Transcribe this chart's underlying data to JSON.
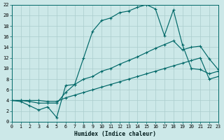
{
  "xlabel": "Humidex (Indice chaleur)",
  "background_color": "#cce8e8",
  "grid_color": "#aacccc",
  "line_color": "#006868",
  "xlim": [
    0,
    23
  ],
  "ylim": [
    0,
    22
  ],
  "xtick_vals": [
    0,
    1,
    2,
    3,
    4,
    5,
    6,
    7,
    8,
    9,
    10,
    11,
    12,
    13,
    14,
    15,
    16,
    17,
    18,
    19,
    20,
    21,
    22,
    23
  ],
  "ytick_vals": [
    0,
    2,
    4,
    6,
    8,
    10,
    12,
    14,
    16,
    18,
    20,
    22
  ],
  "line1_x": [
    0,
    1,
    2,
    3,
    4,
    5,
    6,
    7,
    8,
    9,
    10,
    11,
    12,
    13,
    14,
    15,
    16,
    17,
    18,
    19,
    20,
    21,
    22,
    23
  ],
  "line1_y": [
    4.0,
    3.8,
    3.0,
    2.2,
    2.8,
    0.8,
    6.8,
    7.0,
    12.0,
    17.0,
    19.0,
    19.5,
    20.5,
    20.8,
    21.5,
    22.0,
    21.2,
    16.2,
    21.0,
    14.5,
    10.0,
    9.8,
    9.0,
    9.5
  ],
  "line2_x": [
    0,
    1,
    2,
    3,
    4,
    5,
    6,
    7,
    8,
    9,
    10,
    11,
    12,
    13,
    14,
    15,
    16,
    17,
    18,
    19,
    20,
    21,
    22,
    23
  ],
  "line2_y": [
    4.0,
    4.0,
    3.8,
    3.5,
    3.5,
    3.5,
    5.5,
    7.0,
    8.0,
    8.5,
    9.5,
    10.0,
    10.8,
    11.5,
    12.2,
    13.0,
    13.8,
    14.5,
    15.2,
    13.5,
    14.0,
    14.2,
    11.8,
    9.8
  ],
  "line3_x": [
    0,
    1,
    2,
    3,
    4,
    5,
    6,
    7,
    8,
    9,
    10,
    11,
    12,
    13,
    14,
    15,
    16,
    17,
    18,
    19,
    20,
    21,
    22,
    23
  ],
  "line3_y": [
    4.0,
    4.0,
    4.0,
    4.0,
    3.8,
    3.8,
    4.5,
    5.0,
    5.5,
    6.0,
    6.5,
    7.0,
    7.5,
    8.0,
    8.5,
    9.0,
    9.5,
    10.0,
    10.5,
    11.0,
    11.5,
    12.0,
    8.0,
    8.5
  ]
}
